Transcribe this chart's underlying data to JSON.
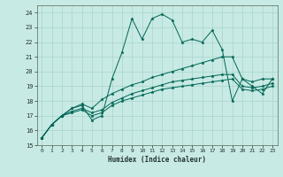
{
  "title": "",
  "xlabel": "Humidex (Indice chaleur)",
  "xlim": [
    -0.5,
    23.5
  ],
  "ylim": [
    15,
    24.5
  ],
  "xticks": [
    0,
    1,
    2,
    3,
    4,
    5,
    6,
    7,
    8,
    9,
    10,
    11,
    12,
    13,
    14,
    15,
    16,
    17,
    18,
    19,
    20,
    21,
    22,
    23
  ],
  "yticks": [
    15,
    16,
    17,
    18,
    19,
    20,
    21,
    22,
    23,
    24
  ],
  "bg_color": "#c8eae4",
  "grid_color": "#a8d4cc",
  "line_color": "#006655",
  "line1_y": [
    15.5,
    16.4,
    17.0,
    17.5,
    17.7,
    16.7,
    17.0,
    19.5,
    21.3,
    23.6,
    22.2,
    23.6,
    23.9,
    23.5,
    22.0,
    22.2,
    22.0,
    22.8,
    21.5,
    18.0,
    19.5,
    19.0,
    18.5,
    19.5
  ],
  "line2_y": [
    15.5,
    16.4,
    17.0,
    17.5,
    17.8,
    17.5,
    18.1,
    18.5,
    18.8,
    19.1,
    19.3,
    19.6,
    19.8,
    20.0,
    20.2,
    20.4,
    20.6,
    20.8,
    21.0,
    21.0,
    19.5,
    19.3,
    19.5,
    19.5
  ],
  "line3_y": [
    15.5,
    16.4,
    17.0,
    17.3,
    17.5,
    17.2,
    17.4,
    17.9,
    18.2,
    18.5,
    18.7,
    18.9,
    19.1,
    19.3,
    19.4,
    19.5,
    19.6,
    19.7,
    19.8,
    19.8,
    19.0,
    18.9,
    19.0,
    19.2
  ],
  "line4_y": [
    15.5,
    16.4,
    17.0,
    17.2,
    17.4,
    17.0,
    17.2,
    17.7,
    18.0,
    18.2,
    18.4,
    18.6,
    18.8,
    18.9,
    19.0,
    19.1,
    19.2,
    19.3,
    19.4,
    19.5,
    18.8,
    18.7,
    18.8,
    19.0
  ],
  "marker_size": 2.5,
  "linewidth": 0.7
}
